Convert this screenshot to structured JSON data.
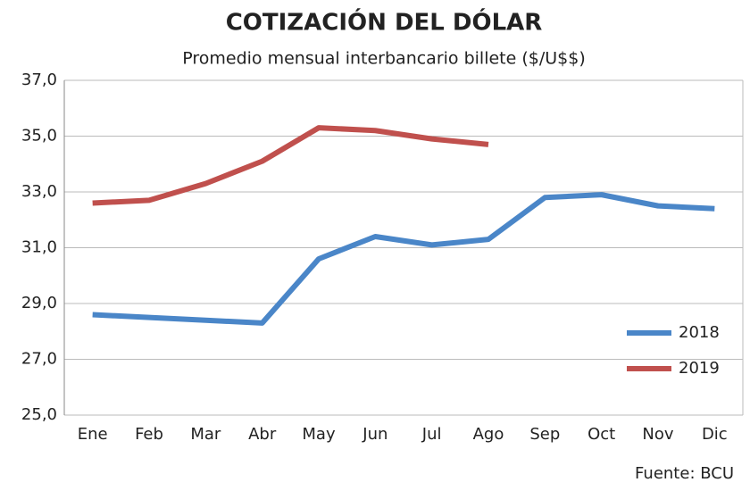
{
  "chart_data": {
    "type": "line",
    "title": "COTIZACIÓN DEL DÓLAR",
    "subtitle": "Promedio mensual interbancario billete ($/U$$)",
    "source": "Fuente: BCU",
    "categories": [
      "Ene",
      "Feb",
      "Mar",
      "Abr",
      "May",
      "Jun",
      "Jul",
      "Ago",
      "Sep",
      "Oct",
      "Nov",
      "Dic"
    ],
    "series": [
      {
        "name": "2018",
        "color": "#4a86c8",
        "values": [
          28.6,
          28.5,
          28.4,
          28.3,
          30.6,
          31.4,
          31.1,
          31.3,
          32.8,
          32.9,
          32.5,
          32.4
        ]
      },
      {
        "name": "2019",
        "color": "#c0504d",
        "values": [
          32.6,
          32.7,
          33.3,
          34.1,
          35.3,
          35.2,
          34.9,
          34.7,
          null,
          null,
          null,
          null
        ]
      }
    ],
    "ylim": [
      25,
      37
    ],
    "yticks": [
      {
        "value": 25,
        "label": "25,0"
      },
      {
        "value": 27,
        "label": "27,0"
      },
      {
        "value": 29,
        "label": "29,0"
      },
      {
        "value": 31,
        "label": "31,0"
      },
      {
        "value": 33,
        "label": "33,0"
      },
      {
        "value": 35,
        "label": "35,0"
      },
      {
        "value": 37,
        "label": "37,0"
      }
    ],
    "grid": true,
    "legend": "lower right"
  }
}
